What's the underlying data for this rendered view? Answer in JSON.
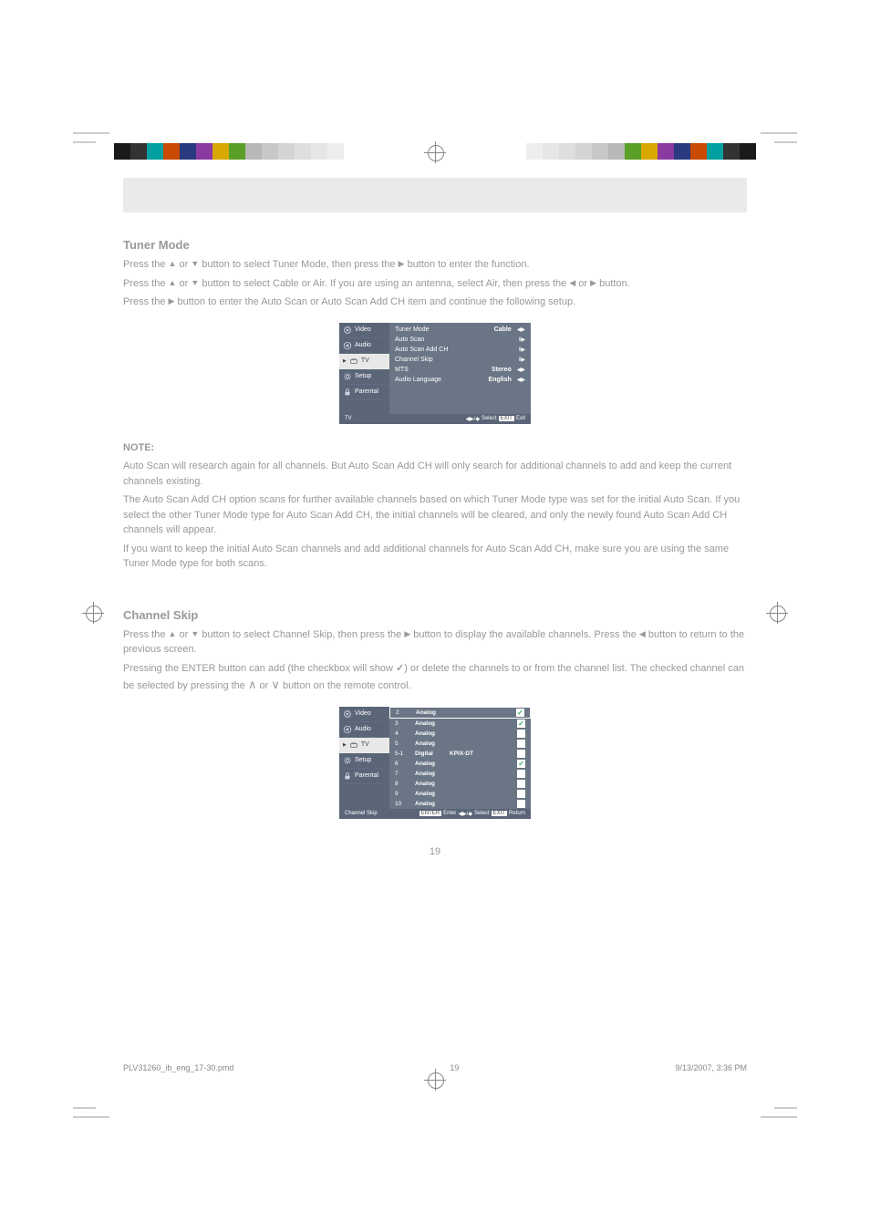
{
  "registration": {
    "colorbar_colors": [
      "#1a1a1a",
      "#333333",
      "#00a0a0",
      "#c94a00",
      "#2a3a80",
      "#8a3aa0",
      "#d8a800",
      "#5aa028",
      "#b8b8b8",
      "#c8c8c8",
      "#d4d4d4",
      "#dedede",
      "#e6e6e6",
      "#eeeeee"
    ],
    "colorbar_colors_right": [
      "#eeeeee",
      "#e6e6e6",
      "#dedede",
      "#d4d4d4",
      "#c8c8c8",
      "#b8b8b8",
      "#5aa028",
      "#d8a800",
      "#8a3aa0",
      "#2a3a80",
      "#c94a00",
      "#00a0a0",
      "#333333",
      "#1a1a1a"
    ]
  },
  "tuner_section": {
    "title": "Tuner Mode",
    "line1_a": "Press the ",
    "line1_b": " or ",
    "line1_c": " button to select Tuner Mode, then press the ",
    "line1_d": " button to enter the function.",
    "line2_a": "Press the ",
    "line2_b": " or ",
    "line2_c": " button to select Cable or Air. If you are using an antenna, select Air, then press the ",
    "line2_d": " or ",
    "line2_e": " button.",
    "line3_a": "Press the ",
    "line3_b": " button to enter the Auto Scan or Auto Scan Add CH item and continue the following setup."
  },
  "osd1": {
    "sidebar": [
      {
        "label": "Video",
        "icon": "video"
      },
      {
        "label": "Audio",
        "icon": "audio"
      },
      {
        "label": "TV",
        "icon": "tv",
        "active": true
      },
      {
        "label": "Setup",
        "icon": "setup"
      },
      {
        "label": "Parental",
        "icon": "parental"
      }
    ],
    "items": [
      {
        "label": "Tuner Mode",
        "value": "Cable",
        "arrow": "lr"
      },
      {
        "label": "Auto Scan",
        "value": "",
        "arrow": "dr"
      },
      {
        "label": "Auto Scan Add CH",
        "value": "",
        "arrow": "dr"
      },
      {
        "label": "Channel Skip",
        "value": "",
        "arrow": "dr"
      },
      {
        "label": "MTS",
        "value": "Stereo",
        "arrow": "lr"
      },
      {
        "label": "Audio Language",
        "value": "English",
        "arrow": "lr"
      }
    ],
    "footer_left": "TV",
    "footer_select": "Select",
    "footer_exit_btn": "EXIT",
    "footer_exit": "Exit"
  },
  "note": {
    "title": "NOTE:",
    "line1": "Auto Scan will research again for all channels. But Auto Scan Add CH will only search for additional channels to add and keep the current channels existing.",
    "line2": "The Auto Scan Add CH option scans for further available channels based on which Tuner Mode type was set for the initial Auto Scan. If you select the other Tuner Mode type for Auto Scan Add CH, the initial channels will be cleared, and only the newly found Auto Scan Add CH channels will appear.",
    "line3": "If you want to keep the initial Auto Scan channels and add additional channels for Auto Scan Add CH, make sure you are using the same Tuner Mode type for both scans."
  },
  "chskip_section": {
    "title": "Channel Skip",
    "line1_a": "Press the ",
    "line1_b": " or ",
    "line1_c": " button to select Channel Skip, then press the ",
    "line1_d": " button to display the available channels. Press the ",
    "line1_e": " button to return to the previous screen.",
    "line2_a": "Pressing the ENTER button can add (the checkbox will show ",
    "line2_b": ") or delete the channels to or from the channel list. The checked channel can be selected by pressing the ",
    "line2_c": " or ",
    "line2_d": " button on the remote control."
  },
  "osd2": {
    "sidebar": [
      {
        "label": "Video",
        "icon": "video"
      },
      {
        "label": "Audio",
        "icon": "audio"
      },
      {
        "label": "TV",
        "icon": "tv",
        "active": true
      },
      {
        "label": "Setup",
        "icon": "setup"
      },
      {
        "label": "Parental",
        "icon": "parental"
      }
    ],
    "channels": [
      {
        "num": "2",
        "type": "Analog",
        "name": "",
        "checked": true,
        "selected": true
      },
      {
        "num": "3",
        "type": "Analog",
        "name": "",
        "checked": true
      },
      {
        "num": "4",
        "type": "Analog",
        "name": "",
        "checked": false
      },
      {
        "num": "5",
        "type": "Analog",
        "name": "",
        "checked": false
      },
      {
        "num": "5-1",
        "type": "Digital",
        "name": "KPIX-DT",
        "checked": false
      },
      {
        "num": "6",
        "type": "Analog",
        "name": "",
        "checked": true
      },
      {
        "num": "7",
        "type": "Analog",
        "name": "",
        "checked": false
      },
      {
        "num": "8",
        "type": "Analog",
        "name": "",
        "checked": false
      },
      {
        "num": "9",
        "type": "Analog",
        "name": "",
        "checked": false
      },
      {
        "num": "10",
        "type": "Analog",
        "name": "",
        "checked": false
      }
    ],
    "footer_left": "Channel Skip",
    "footer_enter_btn": "ENTER",
    "footer_enter": "Enter",
    "footer_select": "Select",
    "footer_exit_btn": "EXIT",
    "footer_return": "Return"
  },
  "page_number": "19",
  "footer": {
    "filename": "PLV31260_ib_eng_17-30.pmd",
    "page": "19",
    "timestamp": "9/13/2007, 3:36 PM"
  }
}
